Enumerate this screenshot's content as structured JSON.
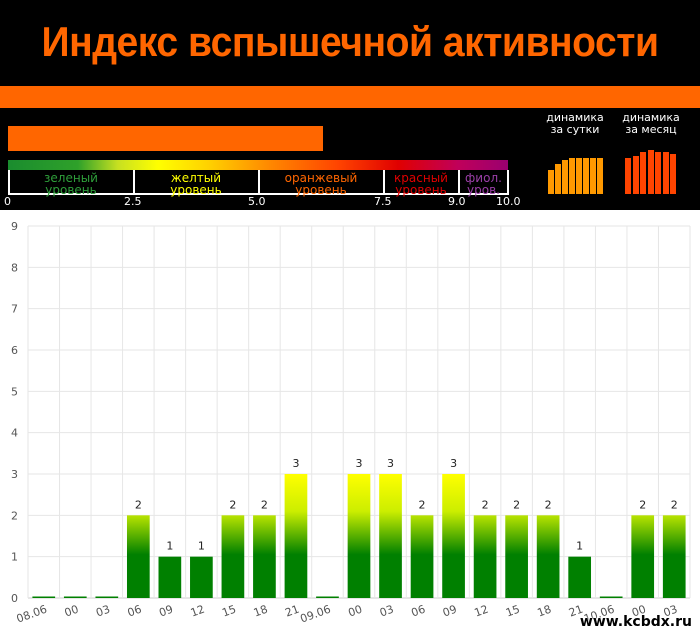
{
  "header": {
    "title": "Индекс вспышечной активности",
    "accent_color": "#ff6600",
    "levels": [
      {
        "label": "зеленый\nуровень",
        "color": "#2e9e3a"
      },
      {
        "label": "желтый\nуровень",
        "color": "#ffff00"
      },
      {
        "label": "оранжевый\nуровень",
        "color": "#ff6600"
      },
      {
        "label": "красный\nуровень",
        "color": "#e00000"
      },
      {
        "label": "фиол.\nуров.",
        "color": "#9b3fa8"
      }
    ],
    "scale_ticks": [
      "0",
      "2.5",
      "5.0",
      "7.5",
      "9.0",
      "10.0"
    ],
    "current_index": 6.3,
    "dynamics_day_label": "динамика\nза сутки",
    "dynamics_month_label": "динамика\nза месяц",
    "dynamics_day_color": "#ff9900",
    "dynamics_month_color": "#ff4400"
  },
  "chart_data": {
    "type": "bar",
    "categories": [
      "08.06",
      "00",
      "03",
      "06",
      "09",
      "12",
      "15",
      "18",
      "21",
      "09.06",
      "00",
      "03",
      "06",
      "09",
      "12",
      "15",
      "18",
      "21",
      "10.06",
      "00",
      "03"
    ],
    "values": [
      0,
      0,
      0,
      2,
      1,
      1,
      2,
      2,
      3,
      0,
      3,
      3,
      2,
      3,
      2,
      2,
      2,
      1,
      0,
      2,
      2
    ],
    "data_labels": [
      "",
      "",
      "",
      "2",
      "1",
      "1",
      "2",
      "2",
      "3",
      "",
      "3",
      "3",
      "2",
      "3",
      "2",
      "2",
      "2",
      "1",
      "",
      "2",
      "2"
    ],
    "ylim": [
      0,
      9
    ],
    "yticks": [
      "0",
      "1",
      "2",
      "3",
      "4",
      "5",
      "6",
      "7",
      "8",
      "9"
    ],
    "grid": true,
    "title": "",
    "xlabel": "",
    "ylabel": "",
    "colors": {
      "bottom": "#008000",
      "top": "#ffff00"
    }
  },
  "watermark": "www.kcbdx.ru"
}
